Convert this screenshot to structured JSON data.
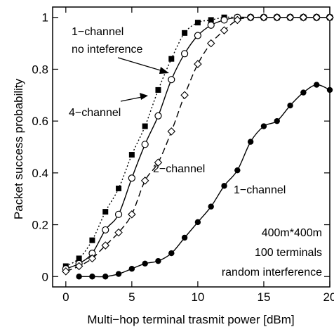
{
  "chart_data": {
    "type": "line",
    "xlabel": "Multi−hop terminal trasmit power [dBm]",
    "ylabel": "Packet success probability",
    "xlim": [
      -1,
      20
    ],
    "ylim": [
      -0.04,
      1.04
    ],
    "xticks": [
      0,
      5,
      10,
      15,
      20
    ],
    "xtick_labels": [
      "0",
      "5",
      "10",
      "15",
      "20"
    ],
    "yticks": [
      0,
      0.2,
      0.4,
      0.6,
      0.8,
      1
    ],
    "ytick_labels": [
      "0",
      "0.2",
      "0.4",
      "0.6",
      "0.8",
      "1"
    ],
    "grid": false,
    "series": [
      {
        "name": "1−channel no inteference",
        "marker": "square-filled",
        "line": "dotted",
        "x": [
          0,
          1,
          2,
          3,
          4,
          5,
          6,
          7,
          8,
          9,
          10,
          11,
          12,
          13,
          14,
          15,
          16,
          17,
          18,
          19,
          20
        ],
        "y": [
          0.04,
          0.07,
          0.14,
          0.25,
          0.34,
          0.47,
          0.58,
          0.72,
          0.84,
          0.94,
          0.98,
          0.99,
          1.0,
          1.0,
          1.0,
          1.0,
          1.0,
          1.0,
          1.0,
          1.0,
          1.0
        ]
      },
      {
        "name": "4−channel",
        "marker": "circle-open",
        "line": "solid",
        "x": [
          0,
          1,
          2,
          3,
          4,
          5,
          6,
          7,
          8,
          9,
          10,
          11,
          12,
          13,
          14,
          15,
          16,
          17,
          18,
          19,
          20
        ],
        "y": [
          0.03,
          0.05,
          0.09,
          0.18,
          0.24,
          0.38,
          0.51,
          0.62,
          0.76,
          0.86,
          0.93,
          0.97,
          0.99,
          1.0,
          1.0,
          1.0,
          1.0,
          1.0,
          1.0,
          1.0,
          1.0
        ]
      },
      {
        "name": "2−channel",
        "marker": "diamond-open",
        "line": "dashed",
        "x": [
          0,
          1,
          2,
          3,
          4,
          5,
          6,
          7,
          8,
          9,
          10,
          11,
          12,
          13,
          14,
          15,
          16,
          17,
          18,
          19,
          20
        ],
        "y": [
          0.02,
          0.04,
          0.07,
          0.12,
          0.17,
          0.24,
          0.37,
          0.44,
          0.56,
          0.7,
          0.82,
          0.9,
          0.95,
          0.99,
          1.0,
          1.0,
          1.0,
          1.0,
          1.0,
          1.0,
          1.0
        ]
      },
      {
        "name": "1−channel",
        "marker": "circle-filled",
        "line": "solid",
        "x": [
          1,
          2,
          3,
          4,
          5,
          6,
          7,
          8,
          9,
          10,
          11,
          12,
          13,
          14,
          15,
          16,
          17,
          18,
          19,
          20
        ],
        "y": [
          0.0,
          0.0,
          0.0,
          0.01,
          0.03,
          0.05,
          0.06,
          0.09,
          0.15,
          0.21,
          0.27,
          0.35,
          0.41,
          0.52,
          0.58,
          0.6,
          0.66,
          0.71,
          0.74,
          0.72
        ]
      }
    ],
    "annotations": [
      {
        "text": "1−channel"
      },
      {
        "text": "no inteference"
      },
      {
        "text": "4−channel"
      },
      {
        "text": "2−channel"
      },
      {
        "text": "1−channel"
      },
      {
        "text": "400m*400m"
      },
      {
        "text": "100 terminals"
      },
      {
        "text": "random interference"
      }
    ]
  }
}
